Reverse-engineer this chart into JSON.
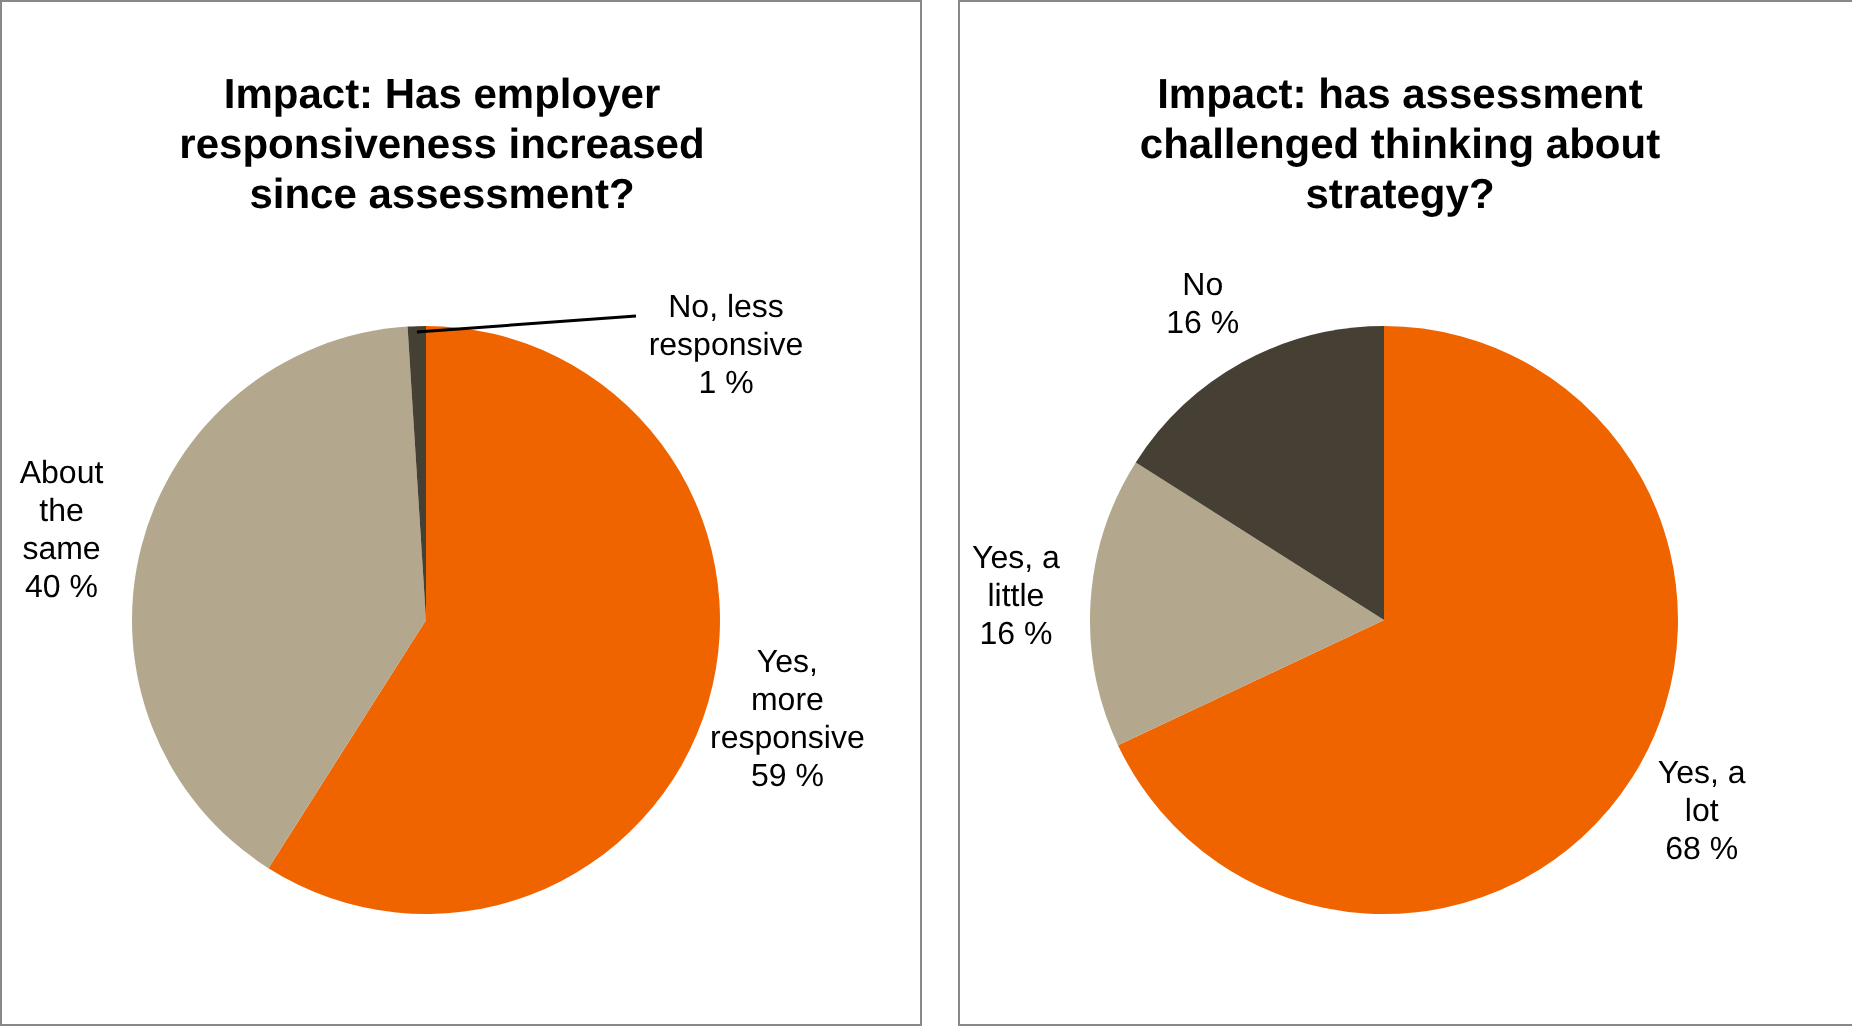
{
  "chart_data": [
    {
      "type": "pie",
      "title": "Impact: Has employer responsiveness increased since assessment?",
      "categories": [
        "Yes, more responsive",
        "About the same",
        "No, less responsive"
      ],
      "values": [
        59,
        40,
        1
      ],
      "value_labels": [
        "59 %",
        "40 %",
        "1 %"
      ],
      "colors": [
        "#f06400",
        "#b3a88d",
        "#454033"
      ],
      "legend": false
    },
    {
      "type": "pie",
      "title": "Impact: has assessment challenged thinking about strategy?",
      "categories": [
        "Yes, a lot",
        "Yes, a little",
        "No"
      ],
      "values": [
        68,
        16,
        16
      ],
      "value_labels": [
        "68 %",
        "16 %",
        "16 %"
      ],
      "colors": [
        "#f06400",
        "#b3a88d",
        "#454033"
      ],
      "legend": false
    }
  ]
}
